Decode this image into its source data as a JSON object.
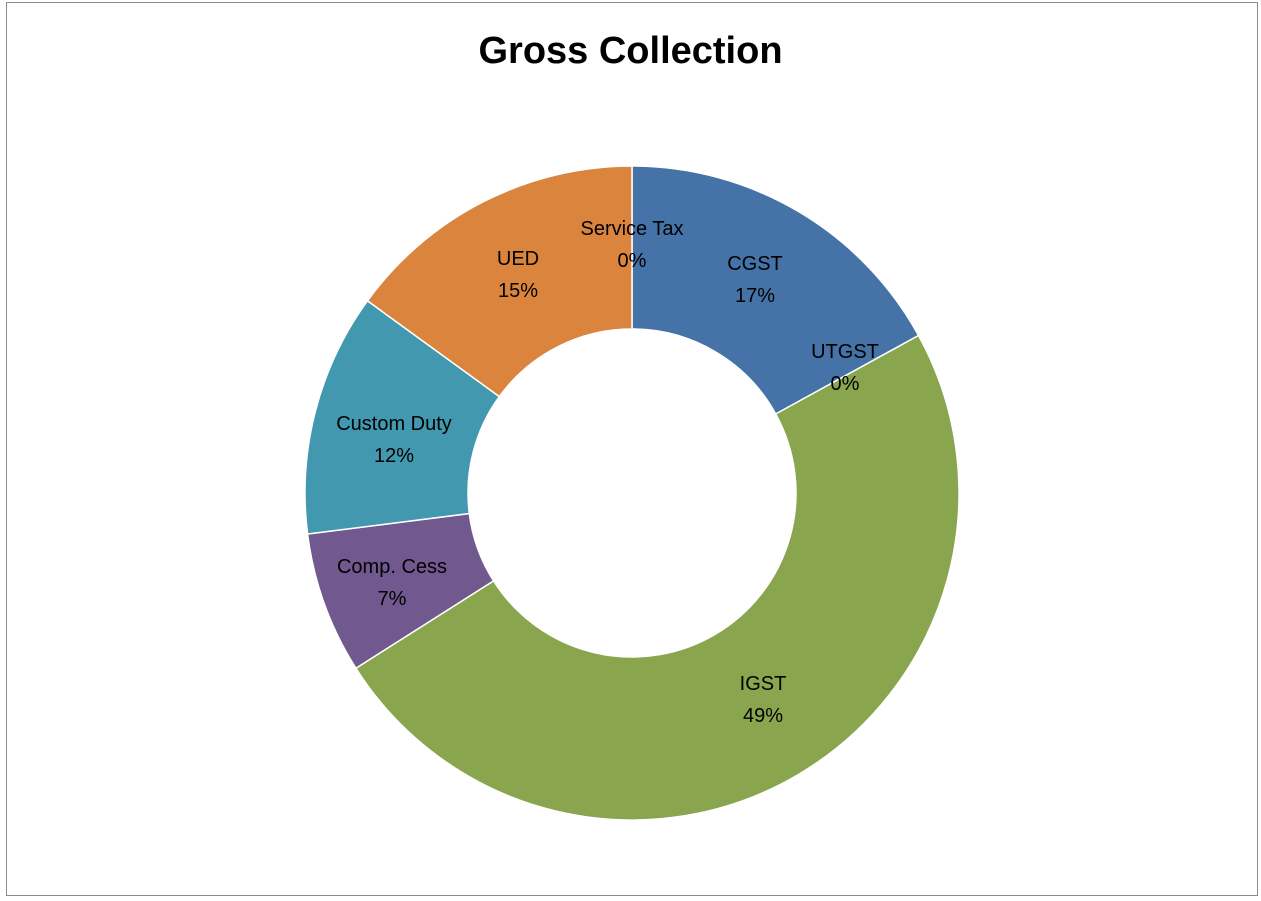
{
  "chart_data": {
    "type": "pie",
    "variant": "donut",
    "title": "Gross Collection",
    "slices": [
      {
        "name": "CGST",
        "value": 17,
        "label": "17%",
        "color": "#4572a7"
      },
      {
        "name": "UTGST",
        "value": 0,
        "label": "0%",
        "color": "#aa4643"
      },
      {
        "name": "IGST",
        "value": 49,
        "label": "49%",
        "color": "#89a54e"
      },
      {
        "name": "Comp. Cess",
        "value": 7,
        "label": "7%",
        "color": "#71588f"
      },
      {
        "name": "Custom Duty",
        "value": 12,
        "label": "12%",
        "color": "#4198af"
      },
      {
        "name": "UED",
        "value": 15,
        "label": "15%",
        "color": "#db843d"
      },
      {
        "name": "Service Tax",
        "value": 0,
        "label": "0%",
        "color": "#93a9cf"
      }
    ],
    "data_labels": "name-and-percent",
    "legend": "none"
  }
}
